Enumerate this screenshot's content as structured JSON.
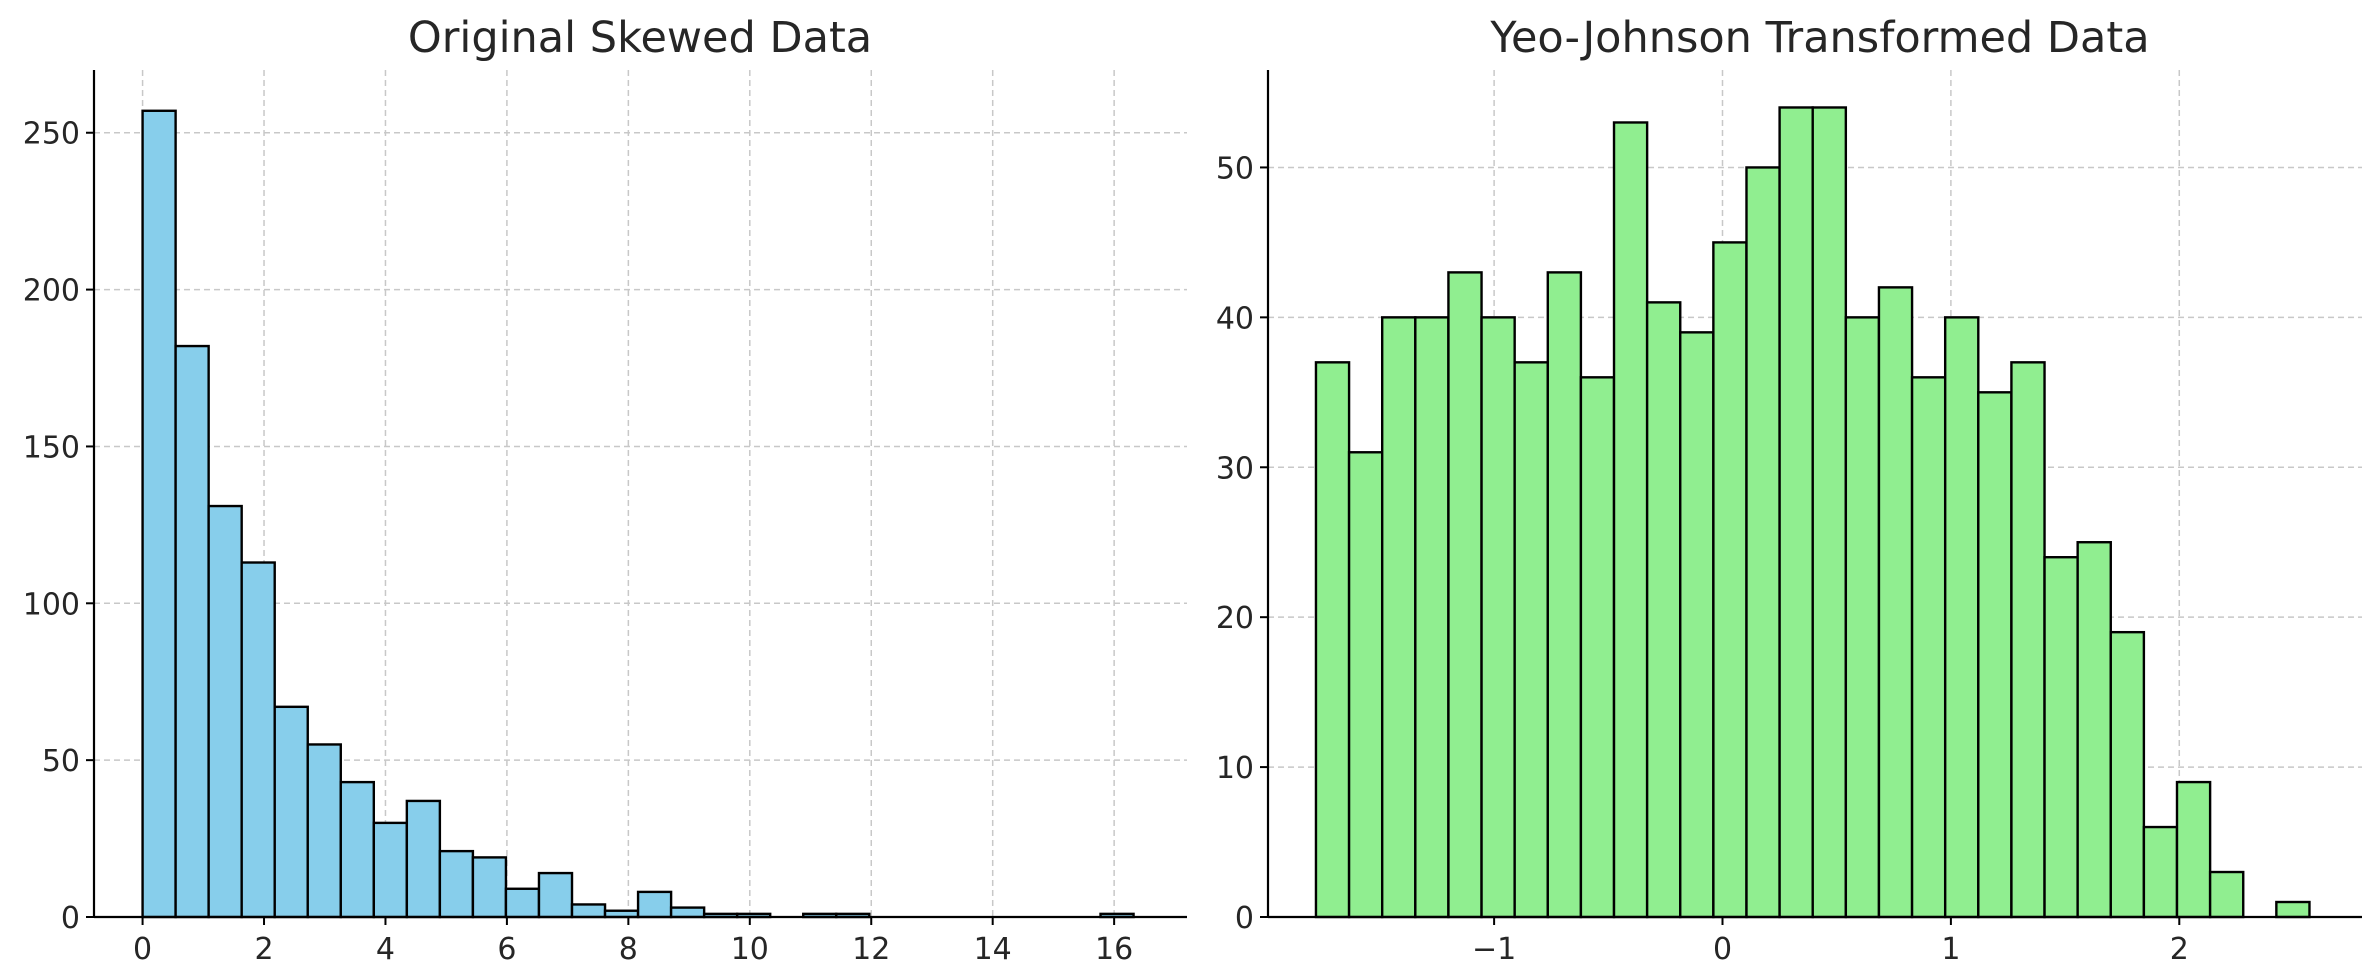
{
  "chart_data": [
    {
      "type": "bar",
      "title": "Original Skewed Data",
      "xlabel": "",
      "ylabel": "",
      "xlim": [
        -0.8,
        17.2
      ],
      "ylim": [
        0,
        270
      ],
      "xticks": [
        0,
        2,
        4,
        6,
        8,
        10,
        12,
        14,
        16
      ],
      "xtick_labels": [
        "0",
        "2",
        "4",
        "6",
        "8",
        "10",
        "12",
        "14",
        "16"
      ],
      "yticks": [
        0,
        50,
        100,
        150,
        200,
        250
      ],
      "ytick_labels": [
        "0",
        "50",
        "100",
        "150",
        "200",
        "250"
      ],
      "grid": true,
      "bar_color": "#87ceeb",
      "bin_start": 0.0,
      "bin_width": 0.544,
      "values": [
        257,
        182,
        131,
        113,
        67,
        55,
        43,
        30,
        37,
        21,
        19,
        9,
        14,
        4,
        2,
        8,
        3,
        1,
        1,
        0,
        1,
        1,
        0,
        0,
        0,
        0,
        0,
        0,
        0,
        1
      ]
    },
    {
      "type": "bar",
      "title": "Yeo-Johnson Transformed Data",
      "xlabel": "",
      "ylabel": "",
      "xlim": [
        -1.99,
        2.8
      ],
      "ylim": [
        0,
        56.5
      ],
      "xticks": [
        -1,
        0,
        1,
        2
      ],
      "xtick_labels": [
        "−1",
        "0",
        "1",
        "2"
      ],
      "yticks": [
        0,
        10,
        20,
        30,
        40,
        50
      ],
      "ytick_labels": [
        "0",
        "10",
        "20",
        "30",
        "40",
        "50"
      ],
      "grid": true,
      "bar_color": "#90ee90",
      "bin_start": -1.78,
      "bin_width": 0.145,
      "values": [
        37,
        31,
        40,
        40,
        43,
        40,
        37,
        43,
        36,
        53,
        41,
        39,
        45,
        50,
        54,
        54,
        40,
        42,
        36,
        40,
        35,
        37,
        24,
        25,
        19,
        6,
        9,
        3,
        0,
        1
      ]
    }
  ]
}
